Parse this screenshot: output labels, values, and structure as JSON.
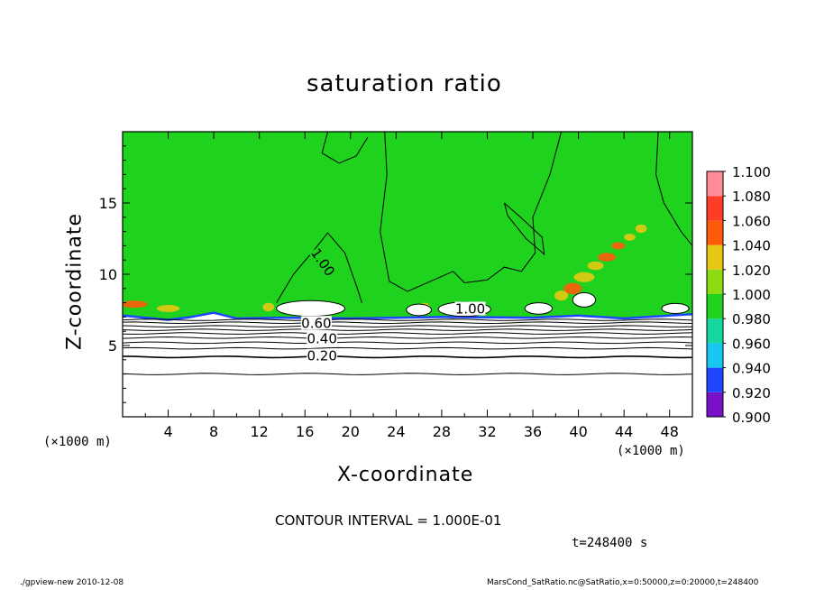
{
  "chart_data": {
    "type": "heatmap",
    "title": "saturation ratio",
    "xlabel": "X-coordinate",
    "ylabel": "Z-coordinate",
    "x_unit_label": "(×1000 m)",
    "xlim": [
      0,
      50
    ],
    "ylim": [
      0,
      20
    ],
    "x_ticks": [
      4,
      8,
      12,
      16,
      20,
      24,
      28,
      32,
      36,
      40,
      44,
      48
    ],
    "y_ticks": [
      5,
      10,
      15
    ],
    "colorbar": {
      "levels": [
        0.9,
        0.92,
        0.94,
        0.96,
        0.98,
        1.0,
        1.02,
        1.04,
        1.06,
        1.08,
        1.1
      ],
      "labels": [
        "0.900",
        "0.920",
        "0.940",
        "0.960",
        "0.980",
        "1.000",
        "1.020",
        "1.040",
        "1.060",
        "1.080",
        "1.100"
      ],
      "colors": [
        "#7a0fc8",
        "#0a1bb4",
        "#1e46ff",
        "#18c8f0",
        "#14d8a0",
        "#1ed21e",
        "#8cdc14",
        "#e6c814",
        "#ff5a0a",
        "#ff3c28",
        "#ff8c96"
      ]
    },
    "contour_labels": [
      {
        "text": "1.00",
        "x": 17.5,
        "z": 10.8
      },
      {
        "text": "1.00",
        "x": 30.5,
        "z": 7.5
      },
      {
        "text": "0.60",
        "x": 17.0,
        "z": 6.5
      },
      {
        "text": "0.40",
        "x": 17.5,
        "z": 5.4
      },
      {
        "text": "0.20",
        "x": 17.5,
        "z": 4.2
      }
    ],
    "contour_interval": "CONTOUR INTERVAL = 1.000E-01",
    "time_label": "t=248400 s",
    "surface_profile": [
      [
        0,
        7.1
      ],
      [
        4,
        6.8
      ],
      [
        6,
        7.0
      ],
      [
        8,
        7.3
      ],
      [
        10,
        6.9
      ],
      [
        14,
        6.95
      ],
      [
        20,
        6.9
      ],
      [
        28,
        7.0
      ],
      [
        36,
        6.95
      ],
      [
        40,
        7.1
      ],
      [
        44,
        6.9
      ],
      [
        50,
        7.2
      ]
    ]
  },
  "footer": {
    "left": "./gpview-new  2010-12-08",
    "right": "MarsCond_SatRatio.nc@SatRatio,x=0:50000,z=0:20000,t=248400"
  }
}
